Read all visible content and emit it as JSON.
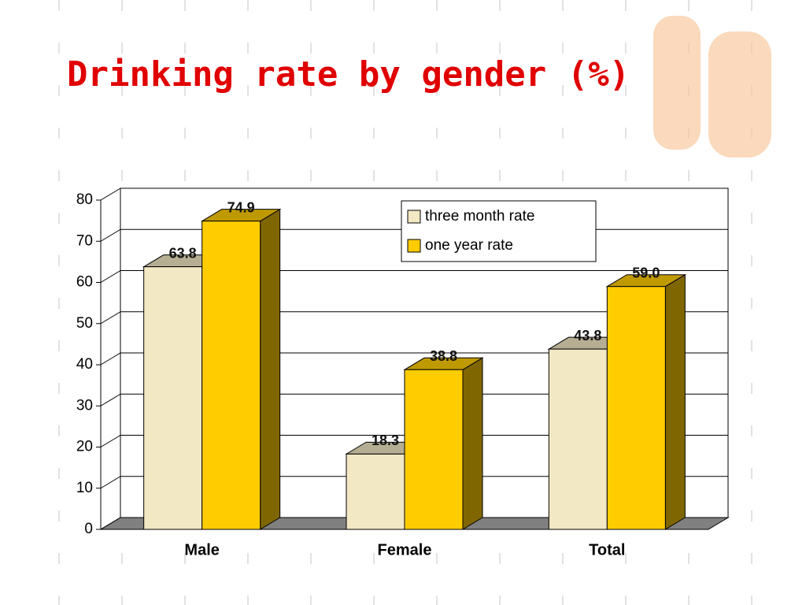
{
  "chart_data": {
    "type": "bar3d",
    "title": "Drinking rate by gender (%)",
    "categories": [
      "Male",
      "Female",
      "Total"
    ],
    "series": [
      {
        "name": "three month rate",
        "color": "#f3e8c4",
        "values": [
          63.8,
          18.3,
          43.8
        ]
      },
      {
        "name": "one year rate",
        "color": "#ffcc00",
        "values": [
          74.9,
          38.8,
          59.0
        ],
        "value_labels": [
          "74.9",
          "38.8",
          "59.0"
        ]
      }
    ],
    "ylim": [
      0,
      80
    ],
    "yticks": [
      0,
      10,
      20,
      30,
      40,
      50,
      60,
      70,
      80
    ],
    "grid": true,
    "legend": "top-right"
  }
}
